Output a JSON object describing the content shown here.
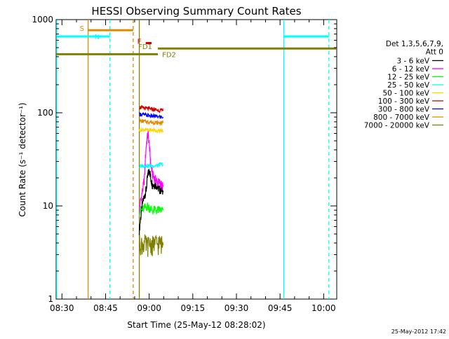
{
  "chart_data": {
    "type": "line",
    "title": "HESSI Observing Summary Count Rates",
    "xlabel": "Start Time (25-May-12 08:28:02)",
    "ylabel": "Count Rate (s⁻¹ detector⁻¹)",
    "x_unit": "minutes since 08:28:02",
    "xlim": [
      0,
      96.5
    ],
    "ylim": [
      1,
      1000
    ],
    "y_scale": "log",
    "grid": false,
    "x_ticks": [
      {
        "t": 2,
        "label": "08:30"
      },
      {
        "t": 17,
        "label": "08:45"
      },
      {
        "t": 32,
        "label": "09:00"
      },
      {
        "t": 47,
        "label": "09:15"
      },
      {
        "t": 62,
        "label": "09:30"
      },
      {
        "t": 77,
        "label": "09:45"
      },
      {
        "t": 92,
        "label": "10:00"
      }
    ],
    "y_ticks": [
      {
        "v": 1,
        "label": "1"
      },
      {
        "v": 10,
        "label": "10"
      },
      {
        "v": 100,
        "label": "100"
      },
      {
        "v": 1000,
        "label": "1000"
      }
    ],
    "legend": {
      "header": [
        "Det 1,3,5,6,7,9,",
        "Att 0"
      ],
      "placement": "right",
      "entries": [
        {
          "label": "3 - 6 keV",
          "color": "#000000"
        },
        {
          "label": "6 - 12 keV",
          "color": "#ff00ff"
        },
        {
          "label": "12 - 25 keV",
          "color": "#00ff00"
        },
        {
          "label": "25 - 50 keV",
          "color": "#00ffff"
        },
        {
          "label": "50 - 100 keV",
          "color": "#ffd700"
        },
        {
          "label": "100 - 300 keV",
          "color": "#d00000"
        },
        {
          "label": "300 - 800 keV",
          "color": "#0000ff"
        },
        {
          "label": "800 - 7000 keV",
          "color": "#e08a00"
        },
        {
          "label": "7000 - 20000 keV",
          "color": "#808000"
        }
      ]
    },
    "series": [
      {
        "name": "3 - 6 keV",
        "color": "#000000",
        "points": [
          [
            28.6,
            5.5
          ],
          [
            29.2,
            8
          ],
          [
            29.8,
            11
          ],
          [
            30.4,
            13
          ],
          [
            31,
            15
          ],
          [
            31.6,
            22
          ],
          [
            32.2,
            24
          ],
          [
            32.5,
            20
          ],
          [
            33.1,
            17
          ],
          [
            33.7,
            17
          ],
          [
            34.3,
            17
          ],
          [
            34.9,
            16
          ],
          [
            35.5,
            15
          ],
          [
            36.1,
            15
          ],
          [
            36.8,
            14
          ]
        ]
      },
      {
        "name": "6 - 12 keV",
        "color": "#ff00ff",
        "points": [
          [
            28.6,
            9
          ],
          [
            29.2,
            12
          ],
          [
            29.8,
            15
          ],
          [
            30.4,
            20
          ],
          [
            31,
            45
          ],
          [
            31.6,
            60
          ],
          [
            32.2,
            40
          ],
          [
            32.5,
            28
          ],
          [
            33.1,
            22
          ],
          [
            33.7,
            20
          ],
          [
            34.3,
            19
          ],
          [
            34.9,
            18
          ],
          [
            35.5,
            18
          ],
          [
            36.1,
            17
          ],
          [
            36.8,
            16
          ]
        ]
      },
      {
        "name": "12 - 25 keV",
        "color": "#00ff00",
        "points": [
          [
            28.6,
            9
          ],
          [
            29.5,
            9
          ],
          [
            30.4,
            9.5
          ],
          [
            31.3,
            10
          ],
          [
            32.2,
            9.5
          ],
          [
            33.1,
            9
          ],
          [
            34,
            9
          ],
          [
            34.9,
            9
          ],
          [
            35.8,
            9
          ],
          [
            36.8,
            9
          ]
        ]
      },
      {
        "name": "25 - 50 keV",
        "color": "#00ffff",
        "points": [
          [
            28.6,
            26
          ],
          [
            29.5,
            27
          ],
          [
            30.4,
            27
          ],
          [
            31.3,
            27
          ],
          [
            32.2,
            27
          ],
          [
            33.1,
            27
          ],
          [
            34,
            27
          ],
          [
            34.9,
            27
          ],
          [
            35.8,
            28
          ],
          [
            36.8,
            28
          ]
        ]
      },
      {
        "name": "50 - 100 keV",
        "color": "#ffd700",
        "points": [
          [
            28.6,
            65
          ],
          [
            29.5,
            66
          ],
          [
            30.4,
            66
          ],
          [
            31.3,
            65
          ],
          [
            32.2,
            65
          ],
          [
            33.1,
            65
          ],
          [
            34,
            65
          ],
          [
            34.9,
            64
          ],
          [
            35.8,
            64
          ],
          [
            36.8,
            64
          ]
        ]
      },
      {
        "name": "100 - 300 keV",
        "color": "#d00000",
        "points": [
          [
            28.6,
            115
          ],
          [
            29.5,
            113
          ],
          [
            30.4,
            112
          ],
          [
            31.3,
            111
          ],
          [
            32.2,
            110
          ],
          [
            33.1,
            109
          ],
          [
            34,
            108
          ],
          [
            34.9,
            107
          ],
          [
            35.8,
            106
          ],
          [
            36.8,
            105
          ]
        ]
      },
      {
        "name": "300 - 800 keV",
        "color": "#0000ff",
        "points": [
          [
            28.6,
            97
          ],
          [
            29.5,
            96
          ],
          [
            30.4,
            95
          ],
          [
            31.3,
            94
          ],
          [
            32.2,
            93
          ],
          [
            33.1,
            92
          ],
          [
            34,
            92
          ],
          [
            34.9,
            91
          ],
          [
            35.8,
            90
          ],
          [
            36.8,
            90
          ]
        ]
      },
      {
        "name": "800 - 7000 keV",
        "color": "#e08a00",
        "points": [
          [
            28.6,
            82
          ],
          [
            29.5,
            81
          ],
          [
            30.4,
            81
          ],
          [
            31.3,
            80
          ],
          [
            32.2,
            80
          ],
          [
            33.1,
            79
          ],
          [
            34,
            79
          ],
          [
            34.9,
            78
          ],
          [
            35.8,
            78
          ],
          [
            36.8,
            78
          ]
        ]
      },
      {
        "name": "7000 - 20000 keV",
        "color": "#808000",
        "points": [
          [
            28.6,
            4
          ],
          [
            29.5,
            3.8
          ],
          [
            30.4,
            4
          ],
          [
            31.3,
            3.7
          ],
          [
            32.2,
            4
          ],
          [
            33.1,
            3.8
          ],
          [
            34,
            4
          ],
          [
            34.9,
            3.9
          ],
          [
            35.8,
            4
          ],
          [
            36.8,
            3.8
          ]
        ]
      }
    ],
    "vlines": [
      {
        "t": 0.2,
        "color": "#00ffff",
        "dash": false
      },
      {
        "t": 11,
        "color": "#e08a00",
        "dash": false
      },
      {
        "t": 18.5,
        "color": "#00ffff",
        "dash": true
      },
      {
        "t": 26.5,
        "color": "#e08a00",
        "dash": true
      },
      {
        "t": 28.6,
        "color": "#808000",
        "dash": false
      },
      {
        "t": 78.3,
        "color": "#00ffff",
        "dash": false
      },
      {
        "t": 93.8,
        "color": "#00ffff",
        "dash": true
      }
    ],
    "flags": [
      {
        "label": "S",
        "color": "#e08a00",
        "t0": 11,
        "t1": 26.5,
        "y": 770,
        "label_at": "left"
      },
      {
        "label": "N",
        "color": "#00ffff",
        "t0": 0.2,
        "t1": 18.5,
        "y": 660,
        "label_at": "right"
      },
      {
        "label": "N",
        "color": "#00ffff",
        "t0": 78.3,
        "t1": 93.8,
        "y": 660,
        "label_at": "none"
      },
      {
        "label": "F",
        "color": "#d00000",
        "t0": 30.8,
        "t1": 32.8,
        "y": 560,
        "label_at": "left"
      },
      {
        "label": "FD1",
        "color": "#808000",
        "t0": 35,
        "t1": 96.5,
        "y": 490,
        "label_at": "above-left"
      },
      {
        "label": "FD2",
        "color": "#808000",
        "t0": 0,
        "t1": 35,
        "y": 425,
        "label_at": "right"
      }
    ]
  },
  "footer": {
    "timestamp": "25-May-2012 17:42"
  }
}
